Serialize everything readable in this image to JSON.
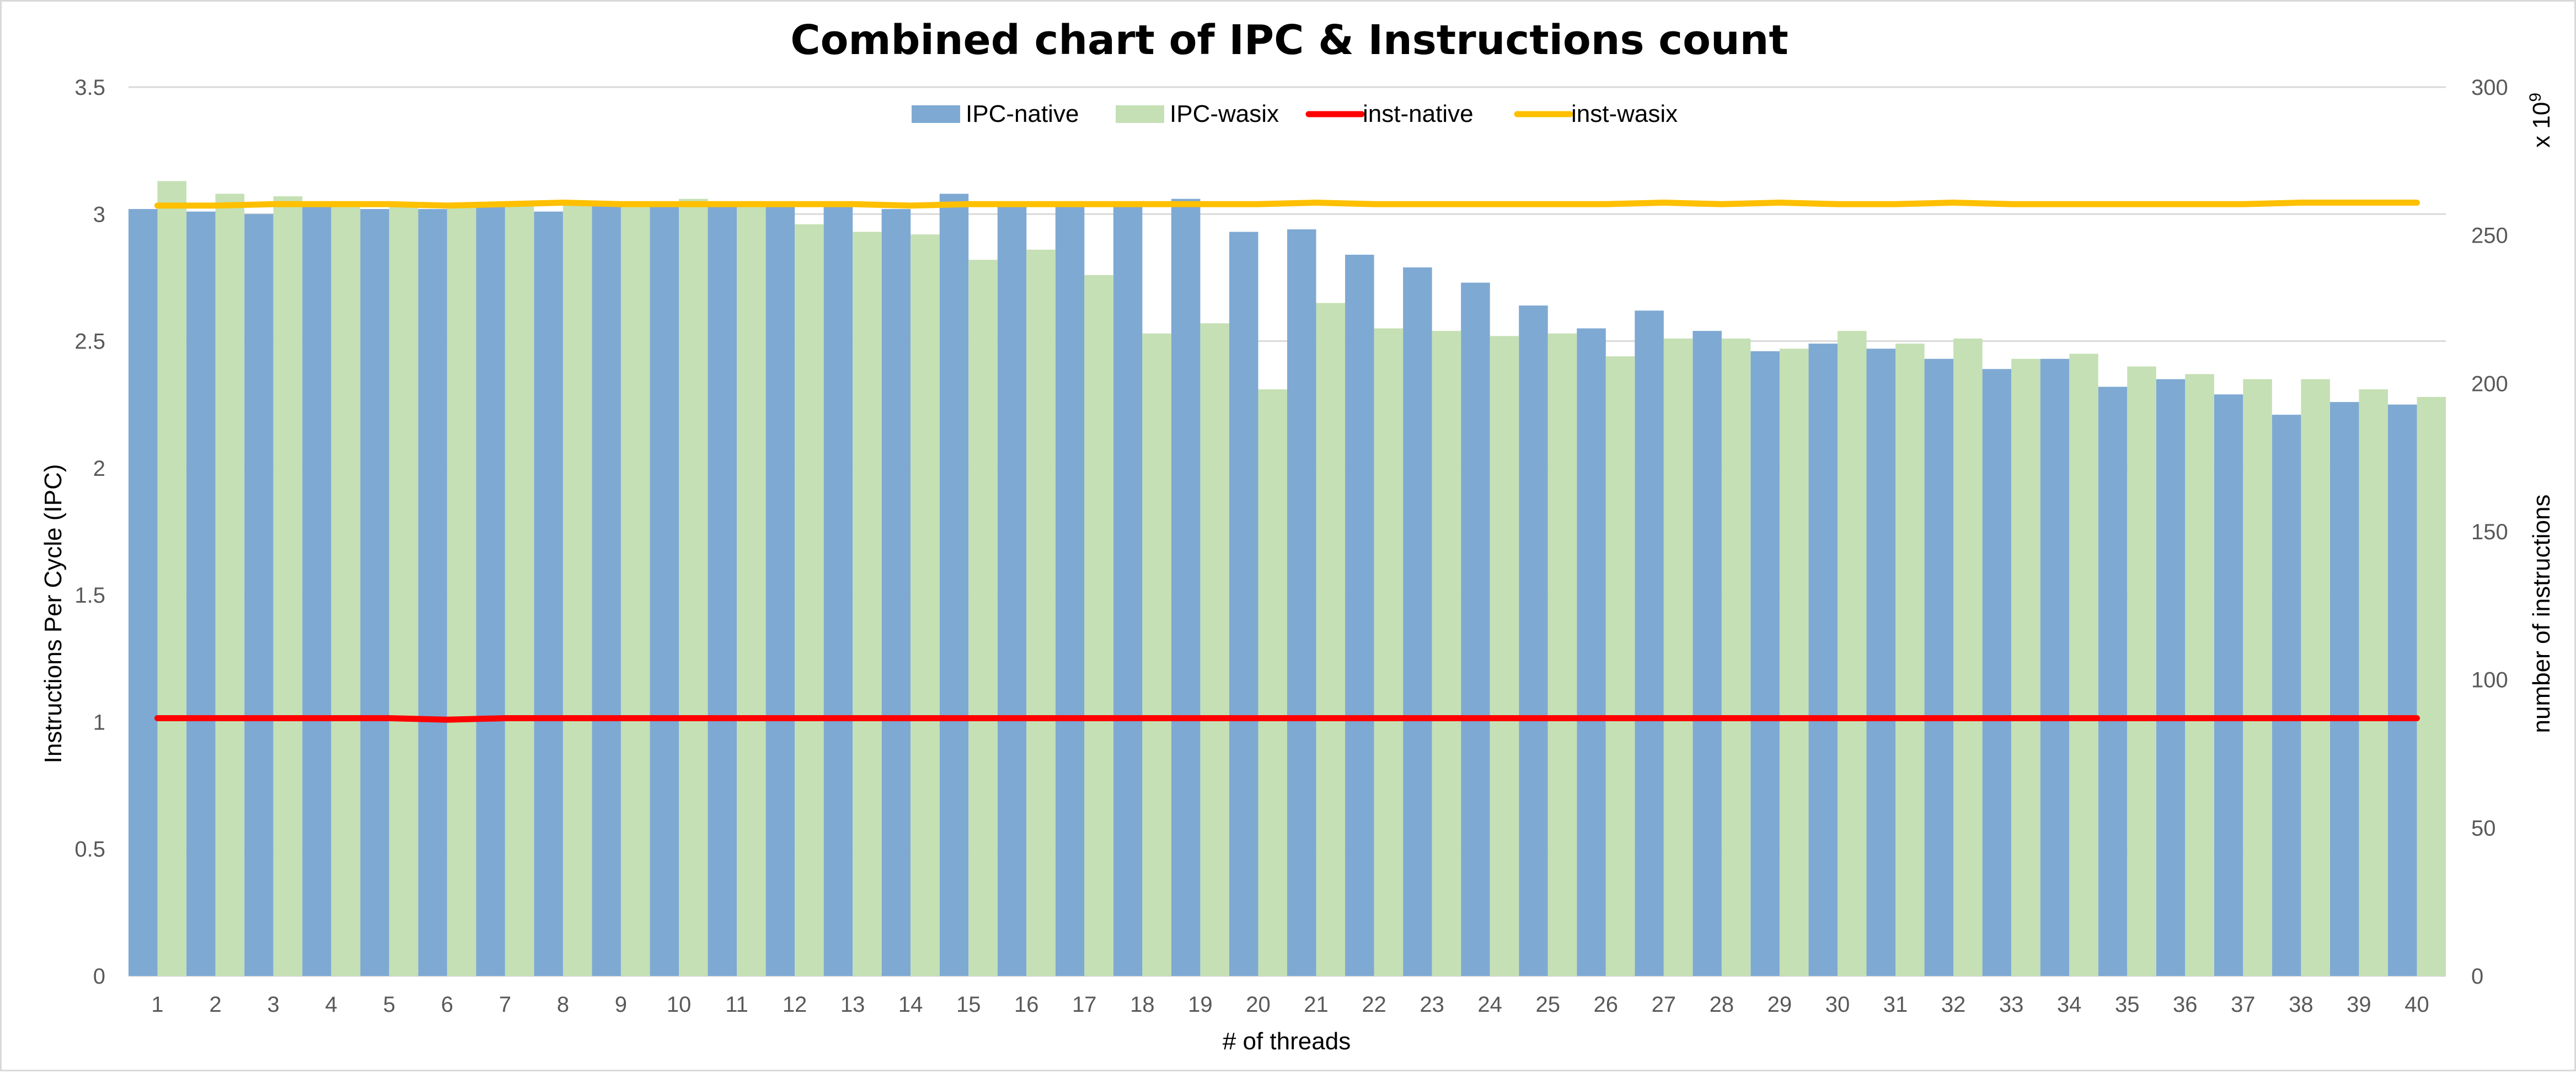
{
  "chart_data": {
    "type": "bar",
    "title": "Combined chart of IPC & Instructions count",
    "xlabel": "# of threads",
    "ylabel": "Instructions Per Cycle (IPC)",
    "y2label": "number of instructions",
    "y2_multiplier": "x 10",
    "y2_multiplier_exp": "9",
    "ylim": [
      0,
      3.5
    ],
    "y2lim": [
      0,
      300
    ],
    "yticks": [
      "0",
      "0.5",
      "1",
      "1.5",
      "2",
      "2.5",
      "3",
      "3.5"
    ],
    "y2ticks": [
      "0",
      "50",
      "100",
      "150",
      "200",
      "250",
      "300"
    ],
    "grid": true,
    "legend_position": "top-center",
    "categories": [
      "1",
      "2",
      "3",
      "4",
      "5",
      "6",
      "7",
      "8",
      "9",
      "10",
      "11",
      "12",
      "13",
      "14",
      "15",
      "16",
      "17",
      "18",
      "19",
      "20",
      "21",
      "22",
      "23",
      "24",
      "25",
      "26",
      "27",
      "28",
      "29",
      "30",
      "31",
      "32",
      "33",
      "34",
      "35",
      "36",
      "37",
      "38",
      "39",
      "40"
    ],
    "series": [
      {
        "name": "IPC-native",
        "kind": "bar",
        "axis": "left",
        "color": "#7ea9d3",
        "values": [
          3.02,
          3.01,
          3.0,
          3.04,
          3.02,
          3.02,
          3.04,
          3.01,
          3.04,
          3.04,
          3.04,
          3.04,
          3.03,
          3.02,
          3.08,
          3.05,
          3.04,
          3.04,
          3.06,
          2.93,
          2.94,
          2.84,
          2.79,
          2.73,
          2.64,
          2.55,
          2.62,
          2.54,
          2.46,
          2.49,
          2.47,
          2.43,
          2.39,
          2.43,
          2.32,
          2.35,
          2.29,
          2.21,
          2.26,
          2.25
        ]
      },
      {
        "name": "IPC-wasix",
        "kind": "bar",
        "axis": "left",
        "color": "#c5e0b4",
        "values": [
          3.13,
          3.08,
          3.07,
          3.04,
          3.03,
          3.03,
          3.04,
          3.04,
          3.05,
          3.06,
          3.04,
          2.96,
          2.93,
          2.92,
          2.82,
          2.86,
          2.76,
          2.53,
          2.57,
          2.31,
          2.65,
          2.55,
          2.54,
          2.52,
          2.53,
          2.44,
          2.51,
          2.51,
          2.47,
          2.54,
          2.49,
          2.51,
          2.43,
          2.45,
          2.4,
          2.37,
          2.35,
          2.35,
          2.31,
          2.28
        ]
      },
      {
        "name": "inst-native",
        "kind": "line",
        "axis": "right",
        "color": "#ff0000",
        "values": [
          87,
          87,
          87,
          87,
          87,
          86.5,
          87,
          87,
          87,
          87,
          87,
          87,
          87,
          87,
          87,
          87,
          87,
          87,
          87,
          87,
          87,
          87,
          87,
          87,
          87,
          87,
          87,
          87,
          87,
          87,
          87,
          87,
          87,
          87,
          87,
          87,
          87,
          87,
          87,
          87
        ]
      },
      {
        "name": "inst-wasix",
        "kind": "line",
        "axis": "right",
        "color": "#ffc000",
        "values": [
          260,
          260,
          260.5,
          260.5,
          260.5,
          260,
          260.5,
          261,
          260.5,
          260.5,
          260.5,
          260.5,
          260.5,
          260,
          260.5,
          260.5,
          260.5,
          260.5,
          260.5,
          260.5,
          261,
          260.5,
          260.5,
          260.5,
          260.5,
          260.5,
          261,
          260.5,
          261,
          260.5,
          260.5,
          261,
          260.5,
          260.5,
          260.5,
          260.5,
          260.5,
          261,
          261,
          261
        ]
      }
    ]
  }
}
